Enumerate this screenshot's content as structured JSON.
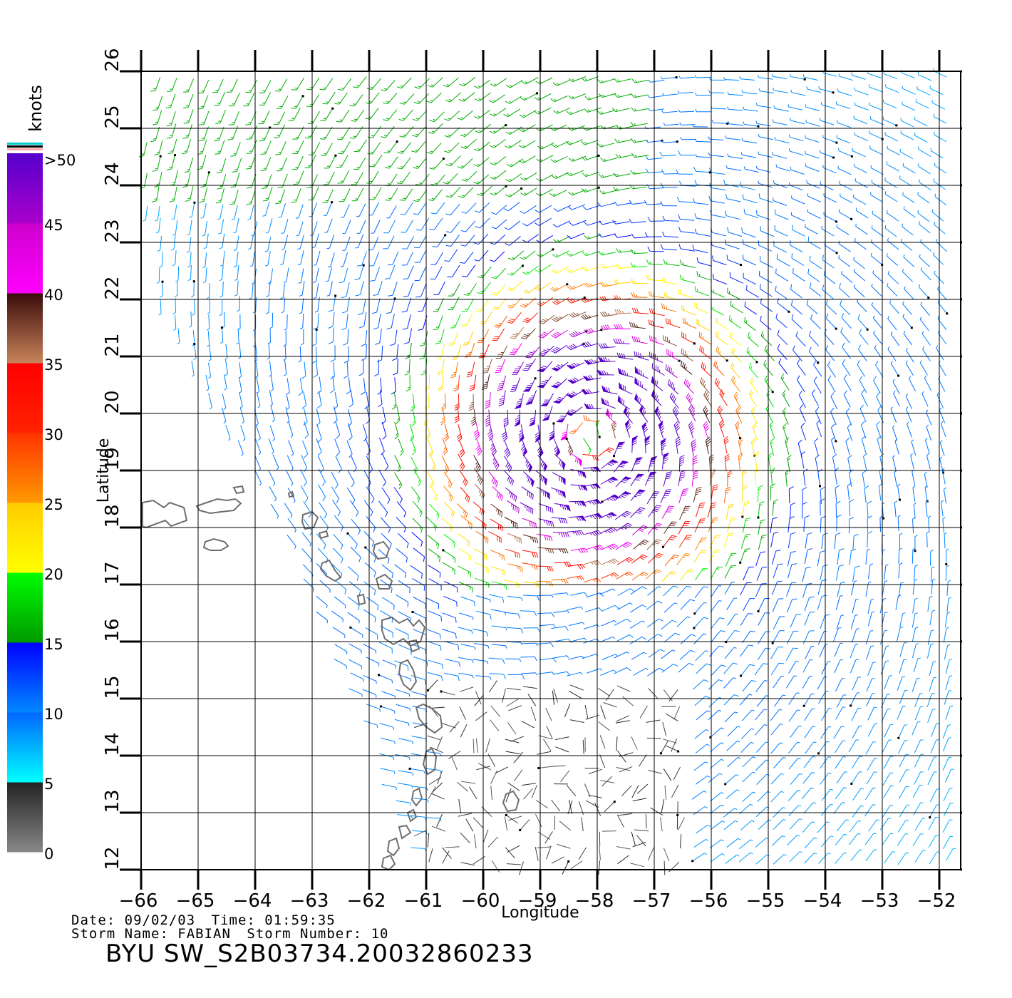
{
  "map": {
    "x_axis_label": "Longitude",
    "y_axis_label": "Latitude",
    "lon_ticks": [
      "-66",
      "-65",
      "-64",
      "-63",
      "-62",
      "-61",
      "-60",
      "-59",
      "-58",
      "-57",
      "-56",
      "-55",
      "-54",
      "-53",
      "-52"
    ],
    "lat_ticks": [
      "12",
      "13",
      "14",
      "15",
      "16",
      "17",
      "18",
      "19",
      "20",
      "21",
      "22",
      "23",
      "24",
      "25",
      "26"
    ],
    "lon_range": [
      -66,
      -51.6
    ],
    "lat_range": [
      12,
      26
    ],
    "grid": true,
    "storm_center": {
      "lon": -58.1,
      "lat": 19.6
    },
    "color_scale": {
      "unit": "knots",
      "labels": [
        "0",
        "5",
        "10",
        "15",
        "20",
        "25",
        "30",
        "35",
        "40",
        "45",
        ">50"
      ],
      "bands": [
        {
          "min": 0,
          "max": 5,
          "colors": [
            "#888888",
            "#222222"
          ]
        },
        {
          "min": 5,
          "max": 10,
          "colors": [
            "#00ffff",
            "#0066ff"
          ]
        },
        {
          "min": 10,
          "max": 15,
          "colors": [
            "#0088ff",
            "#0000ff"
          ]
        },
        {
          "min": 15,
          "max": 20,
          "colors": [
            "#009900",
            "#00ff00"
          ]
        },
        {
          "min": 20,
          "max": 25,
          "colors": [
            "#ffff00",
            "#ffcc00"
          ]
        },
        {
          "min": 25,
          "max": 30,
          "colors": [
            "#ff9900",
            "#ff3300"
          ]
        },
        {
          "min": 30,
          "max": 35,
          "colors": [
            "#ff2200",
            "#ff0000"
          ]
        },
        {
          "min": 35,
          "max": 40,
          "colors": [
            "#c8845a",
            "#3a0a0a"
          ]
        },
        {
          "min": 40,
          "max": 45,
          "colors": [
            "#ff00ff",
            "#cc00cc"
          ]
        },
        {
          "min": 45,
          "max": 50,
          "colors": [
            "#aa00cc",
            "#5500cc"
          ]
        }
      ]
    }
  },
  "footer": {
    "date_label": "Date:",
    "date_value": "09/02/03",
    "time_label": "Time:",
    "time_value": "01:59:35",
    "storm_name_label": "Storm Name:",
    "storm_name_value": "FABIAN",
    "storm_number_label": "Storm Number:",
    "storm_number_value": "10",
    "product_id": "BYU SW_S2B03734.20032860233"
  }
}
